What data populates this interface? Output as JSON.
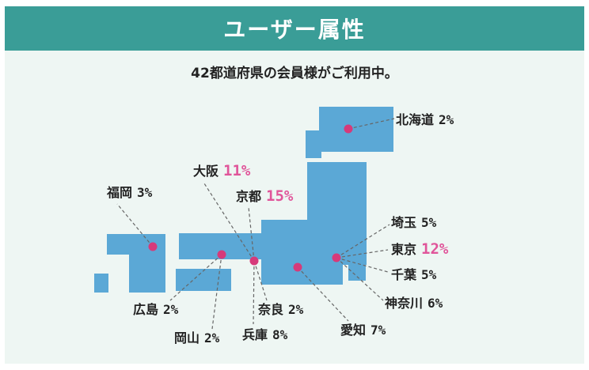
{
  "header": {
    "title": "ユーザー属性"
  },
  "subtitle": "42都道府県の会員様がご利用中。",
  "colors": {
    "header_bg": "#3a9d97",
    "panel_bg": "#eef6f3",
    "land": "#5ba8d6",
    "marker": "#d63a7a",
    "highlight_pct": "#e0559a"
  },
  "regions": [
    {
      "name": "北海道",
      "pct": "2%",
      "highlight": false
    },
    {
      "name": "大阪",
      "pct": "11%",
      "highlight": true
    },
    {
      "name": "京都",
      "pct": "15%",
      "highlight": true
    },
    {
      "name": "福岡",
      "pct": "3%",
      "highlight": false
    },
    {
      "name": "埼玉",
      "pct": "5%",
      "highlight": false
    },
    {
      "name": "東京",
      "pct": "12%",
      "highlight": true
    },
    {
      "name": "千葉",
      "pct": "5%",
      "highlight": false
    },
    {
      "name": "神奈川",
      "pct": "6%",
      "highlight": false
    },
    {
      "name": "広島",
      "pct": "2%",
      "highlight": false
    },
    {
      "name": "奈良",
      "pct": "2%",
      "highlight": false
    },
    {
      "name": "愛知",
      "pct": "7%",
      "highlight": false
    },
    {
      "name": "岡山",
      "pct": "2%",
      "highlight": false
    },
    {
      "name": "兵庫",
      "pct": "8%",
      "highlight": false
    }
  ]
}
